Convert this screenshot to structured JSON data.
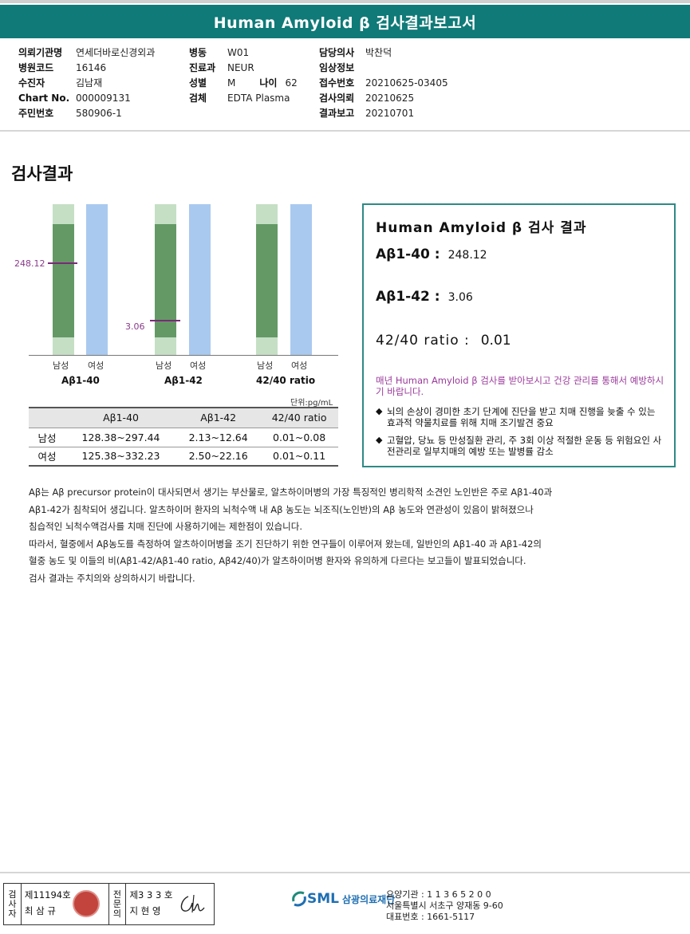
{
  "header": {
    "title": "Human Amyloid β 검사결과보고서"
  },
  "info": {
    "col1": [
      {
        "label": "의뢰기관명",
        "value": "연세더바로신경외과"
      },
      {
        "label": "병원코드",
        "value": "16146"
      },
      {
        "label": "수진자",
        "value": "김남재"
      },
      {
        "label": "Chart No.",
        "value": "000009131"
      },
      {
        "label": "주민번호",
        "value": "580906-1"
      }
    ],
    "col2": [
      {
        "label": "병동",
        "value": "W01"
      },
      {
        "label": "진료과",
        "value": "NEUR"
      },
      {
        "label": "성별",
        "value": "M",
        "age_label": "나이",
        "age_value": "62"
      },
      {
        "label": "검체",
        "value": "EDTA Plasma"
      }
    ],
    "col3": [
      {
        "label": "담당의사",
        "value": "박찬덕"
      },
      {
        "label": "임상정보",
        "value": ""
      },
      {
        "label": "접수번호",
        "value": "20210625-03405"
      },
      {
        "label": "검사의뢰",
        "value": "20210625"
      },
      {
        "label": "결과보고",
        "value": "20210701"
      }
    ]
  },
  "section_title": "검사결과",
  "chart_data": {
    "type": "bar",
    "groups": [
      "Aβ1-40",
      "Aβ1-42",
      "42/40 ratio"
    ],
    "gender_labels": [
      "남성",
      "여성"
    ],
    "markers": [
      {
        "group": "Aβ1-40",
        "value": 248.12,
        "label": "248.12"
      },
      {
        "group": "Aβ1-42",
        "value": 3.06,
        "label": "3.06"
      }
    ],
    "unit": "단위:pg/mL"
  },
  "ref_table": {
    "headers": [
      "",
      "Aβ1-40",
      "Aβ1-42",
      "42/40 ratio"
    ],
    "rows": [
      [
        "남성",
        "128.38~297.44",
        "2.13~12.64",
        "0.01~0.08"
      ],
      [
        "여성",
        "125.38~332.23",
        "2.50~22.16",
        "0.01~0.11"
      ]
    ]
  },
  "result_box": {
    "title": "Human Amyloid β 검사 결과",
    "ab40_label": "Aβ1-40 :",
    "ab40_value": "248.12",
    "ab42_label": "Aβ1-42 :",
    "ab42_value": "3.06",
    "ratio_label": "42/40 ratio :",
    "ratio_value": "0.01",
    "note": "매년 Human Amyloid β 검사를 받아보시고 건강 관리를 통해서 예방하시기 바랍니다.",
    "bullet1": "뇌의 손상이 경미한 초기 단계에 진단을 받고 치매 진행을 늦출 수 있는 효과적 약물치료를 위해 치매 조기발견 중요",
    "bullet2": "고혈압, 당뇨 등 만성질환 관리, 주 3회 이상 적절한 운동 등 위험요인 사전관리로 일부치매의 예방 또는 발병률 감소"
  },
  "description": [
    "Aβ는 Aβ precursor protein이 대사되면서 생기는 부산물로, 알츠하이머병의 가장 특징적인 병리학적 소견인 노인반은 주로 Aβ1-40과",
    "Aβ1-42가 침착되어 생깁니다. 알츠하이머 환자의 뇌척수액 내 Aβ 농도는 뇌조직(노인반)의 Aβ 농도와 연관성이 있음이 밝혀졌으나",
    "침습적인 뇌척수액검사를 치매 진단에 사용하기에는 제한점이 있습니다.",
    "따라서, 혈중에서 Aβ농도를 측정하여 알츠하이머병을 조기 진단하기 위한 연구들이 이루어져 왔는데, 일반인의 Aβ1-40 과 Aβ1-42의",
    "혈중 농도 및 이들의 비(Aβ1-42/Aβ1-40 ratio, Aβ42/40)가 알츠하이머병 환자와 유의하게 다르다는 보고들이 발표되었습니다.",
    "검사 결과는 주치의와 상의하시기 바랍니다."
  ],
  "footer": {
    "tag1": [
      "검",
      "사",
      "자"
    ],
    "inspector_no": "제11194호",
    "inspector_name": "최 삼 규",
    "tag2": [
      "전",
      "문",
      "의"
    ],
    "doctor_no": "제3 3 3 호",
    "doctor_name": "지 현 영",
    "logo_sml": "SML",
    "logo_name": "삼광의료재단",
    "org_code": "요양기관 : 1 1 3 6 5 2 0 0",
    "address": "서울특별시 서초구 양재동 9-60",
    "phone": "대표번호 : 1661-5117"
  }
}
